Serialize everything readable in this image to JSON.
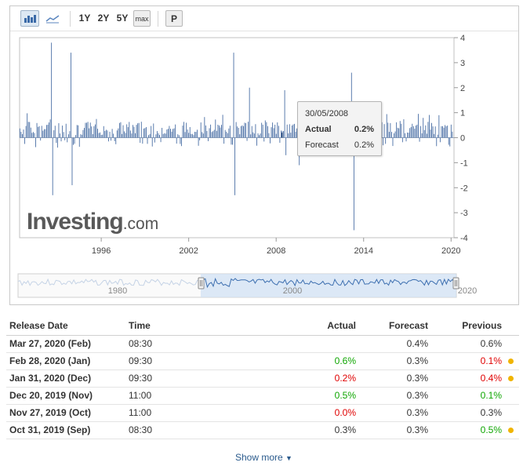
{
  "toolbar": {
    "ranges": [
      "1Y",
      "2Y",
      "5Y",
      "max"
    ],
    "print_label": "P",
    "icons": [
      "bar-chart-icon",
      "line-chart-icon"
    ]
  },
  "tooltip": {
    "date": "30/05/2008",
    "actual_label": "Actual",
    "actual_value": "0.2%",
    "forecast_label": "Forecast",
    "forecast_value": "0.2%"
  },
  "logo": {
    "brand": "Investing",
    "suffix": ".com"
  },
  "chart_data": {
    "type": "bar",
    "x_start_year": 1990.4,
    "x_end_year": 2020.2,
    "ylim": [
      -4,
      4
    ],
    "y_ticks": [
      "4",
      "3",
      "2",
      "1",
      "0",
      "-1",
      "-2",
      "-3",
      "-4"
    ],
    "x_ticks": [
      "1996",
      "2002",
      "2008",
      "2014",
      "2020"
    ],
    "navigator_ticks": [
      "1980",
      "2000",
      "2020"
    ],
    "bar_color": "#4a6fa5",
    "spikes": [
      {
        "year": 1992.6,
        "value": 3.8
      },
      {
        "year": 1992.7,
        "value": -2.3
      },
      {
        "year": 1993.9,
        "value": 3.4
      },
      {
        "year": 1994.0,
        "value": -1.9
      },
      {
        "year": 2005.1,
        "value": 3.4
      },
      {
        "year": 2005.2,
        "value": -2.3
      },
      {
        "year": 2006.2,
        "value": 2.0
      },
      {
        "year": 2008.6,
        "value": 1.9
      },
      {
        "year": 2008.7,
        "value": -0.7
      },
      {
        "year": 2009.5,
        "value": 0.9
      },
      {
        "year": 2009.6,
        "value": -1.1
      },
      {
        "year": 2013.2,
        "value": 2.6
      },
      {
        "year": 2013.3,
        "value": -3.7
      },
      {
        "year": 2019.2,
        "value": 0.9
      }
    ],
    "highlight": {
      "year": 2008.4,
      "value": 0.2
    }
  },
  "table": {
    "headers": [
      "Release Date",
      "Time",
      "Actual",
      "Forecast",
      "Previous"
    ],
    "rows": [
      {
        "date": "Mar 27, 2020 (Feb)",
        "time": "08:30",
        "actual": "",
        "actual_class": "",
        "forecast": "0.4%",
        "previous": "0.6%",
        "previous_class": "",
        "dot": false
      },
      {
        "date": "Feb 28, 2020 (Jan)",
        "time": "09:30",
        "actual": "0.6%",
        "actual_class": "pos",
        "forecast": "0.3%",
        "previous": "0.1%",
        "previous_class": "neg",
        "dot": true
      },
      {
        "date": "Jan 31, 2020 (Dec)",
        "time": "09:30",
        "actual": "0.2%",
        "actual_class": "neg",
        "forecast": "0.3%",
        "previous": "0.4%",
        "previous_class": "neg",
        "dot": true
      },
      {
        "date": "Dec 20, 2019 (Nov)",
        "time": "11:00",
        "actual": "0.5%",
        "actual_class": "pos",
        "forecast": "0.3%",
        "previous": "0.1%",
        "previous_class": "pos",
        "dot": false
      },
      {
        "date": "Nov 27, 2019 (Oct)",
        "time": "11:00",
        "actual": "0.0%",
        "actual_class": "neg",
        "forecast": "0.3%",
        "previous": "0.3%",
        "previous_class": "",
        "dot": false
      },
      {
        "date": "Oct 31, 2019 (Sep)",
        "time": "08:30",
        "actual": "0.3%",
        "actual_class": "",
        "forecast": "0.3%",
        "previous": "0.5%",
        "previous_class": "pos",
        "dot": true
      }
    ]
  },
  "show_more_label": "Show more"
}
